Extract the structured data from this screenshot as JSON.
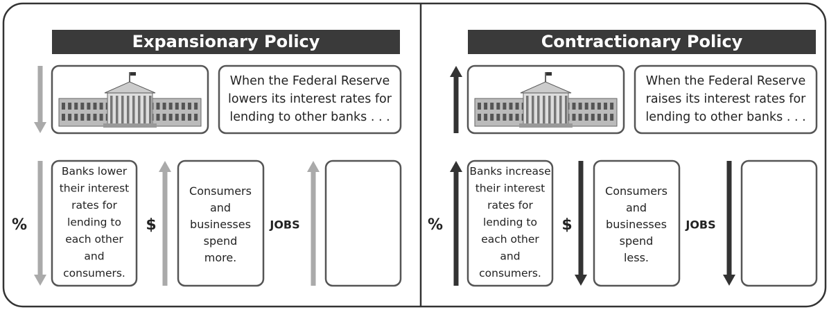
{
  "panels": [
    {
      "title": "Expansionary Policy",
      "fed_text": [
        "When the Federal Reserve",
        "lowers its interest rates for",
        "lending to other banks . . ."
      ],
      "rate_symbol": "%",
      "banks_text": [
        "Banks lower",
        "their interest",
        "rates for",
        "lending to",
        "each other",
        "and",
        "consumers."
      ],
      "spend_symbol": "$",
      "consumers_text": [
        "Consumers",
        "and",
        "businesses",
        "spend",
        "more."
      ],
      "jobs_label": "JOBS"
    },
    {
      "title": "Contractionary Policy",
      "fed_text": [
        "When the Federal Reserve",
        "raises its interest rates for",
        "lending to other banks . . ."
      ],
      "rate_symbol": "%",
      "banks_text": [
        "Banks increase",
        "their interest",
        "rates for",
        "lending to",
        "each other",
        "and",
        "consumers."
      ],
      "spend_symbol": "$",
      "consumers_text": [
        "Consumers",
        "and",
        "businesses",
        "spend",
        "less."
      ],
      "jobs_label": "JOBS"
    }
  ]
}
